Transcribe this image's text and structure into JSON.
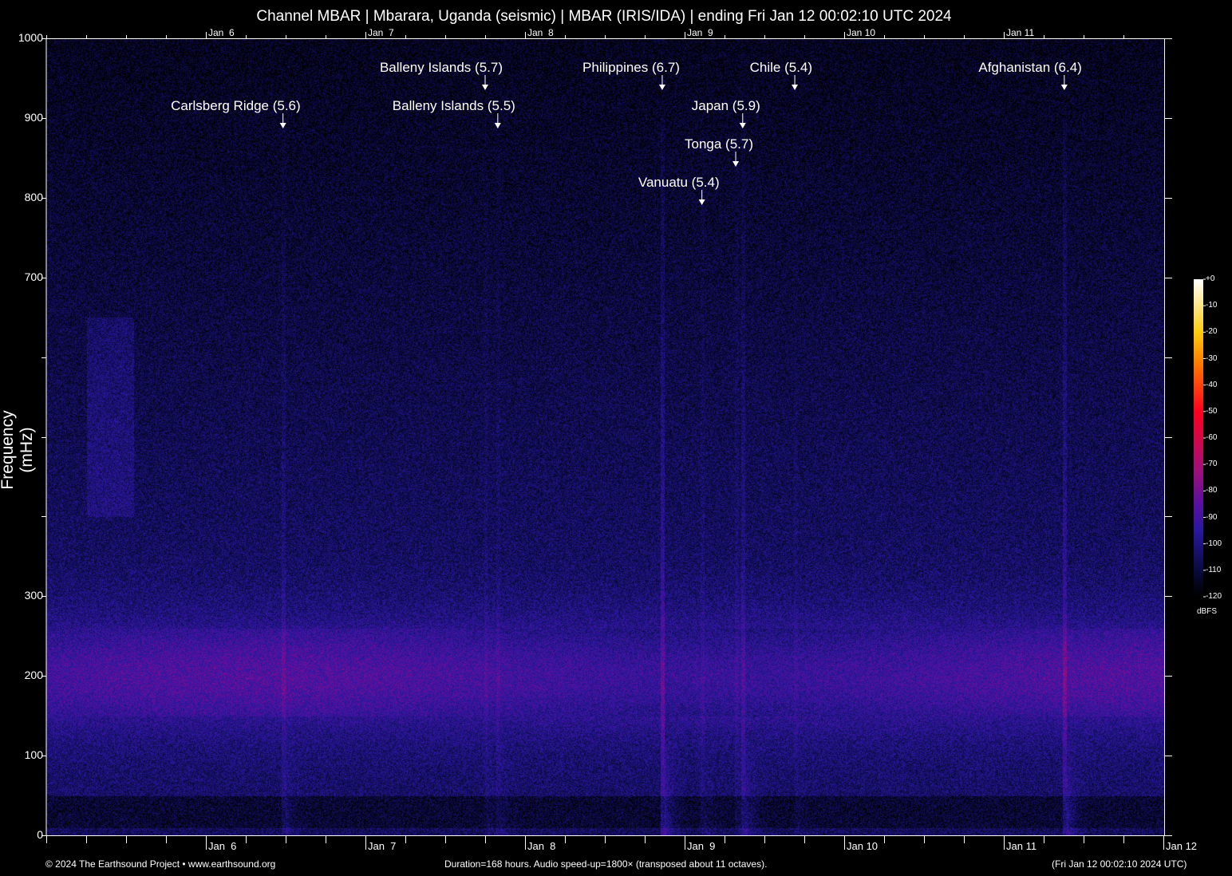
{
  "chart_data": {
    "type": "heatmap",
    "title": "Channel MBAR | Mbarara, Uganda (seismic) | MBAR (IRIS/IDA) | ending Fri Jan 12 00:02:10 UTC 2024",
    "ylabel": "Frequency (mHz)",
    "xlabel": "",
    "ylim": [
      0,
      1000
    ],
    "xlim": [
      "Jan 5 00:02:10 UTC 2024",
      "Jan 12 00:02:10 UTC 2024"
    ],
    "y_ticks": [
      0,
      100,
      200,
      300,
      400,
      500,
      600,
      700,
      800,
      900,
      1000
    ],
    "y_tick_labels": [
      "0",
      "100",
      "200",
      "300",
      "",
      "",
      "",
      "700",
      "800",
      "900",
      "1000"
    ],
    "x_tick_labels": [
      "Jan  6",
      "Jan  7",
      "Jan  8",
      "Jan  9",
      "Jan 10",
      "Jan 11",
      "Jan 12"
    ],
    "x_top_tick_labels": [
      "Jan  6",
      "Jan  7",
      "Jan  8",
      "Jan  9",
      "Jan 10",
      "Jan 11"
    ],
    "colorbar": {
      "label": "dBFS",
      "ticks": [
        "+0",
        "-10",
        "-20",
        "-30",
        "-40",
        "-50",
        "-60",
        "-70",
        "-80",
        "-90",
        "-100",
        "-110",
        "-120"
      ],
      "range": [
        -120,
        0
      ],
      "colormap": [
        "#000000",
        "#0a0a40",
        "#2a18a0",
        "#5a10a0",
        "#a0107a",
        "#ff0020",
        "#ff7a00",
        "#ffcc10",
        "#ffffff"
      ]
    },
    "events": [
      {
        "label": "Carlsberg Ridge (5.6)",
        "time": "Jan 6 11:38"
      },
      {
        "label": "Balleny Islands (5.7)",
        "time": "Jan 7 18:02"
      },
      {
        "label": "Balleny Islands (5.5)",
        "time": "Jan 7 19:56"
      },
      {
        "label": "Philippines (6.7)",
        "time": "Jan 8 20:40"
      },
      {
        "label": "Vanuatu (5.4)",
        "time": "Jan 9 02:38"
      },
      {
        "label": "Tonga (5.7)",
        "time": "Jan 9 07:43"
      },
      {
        "label": "Japan (5.9)",
        "time": "Jan 9 08:46"
      },
      {
        "label": "Chile (5.4)",
        "time": "Jan 9 16:36"
      },
      {
        "label": "Afghanistan (6.4)",
        "time": "Jan 11 09:08"
      }
    ],
    "grid": false
  },
  "footer": {
    "copyright": "© 2024 The Earthsound Project • www.earthsound.org",
    "info": "Duration=168 hours. Audio speed-up=1800× (transposed about 11 octaves).",
    "ending": "(Fri Jan 12 00:02:10 2024 UTC)"
  }
}
